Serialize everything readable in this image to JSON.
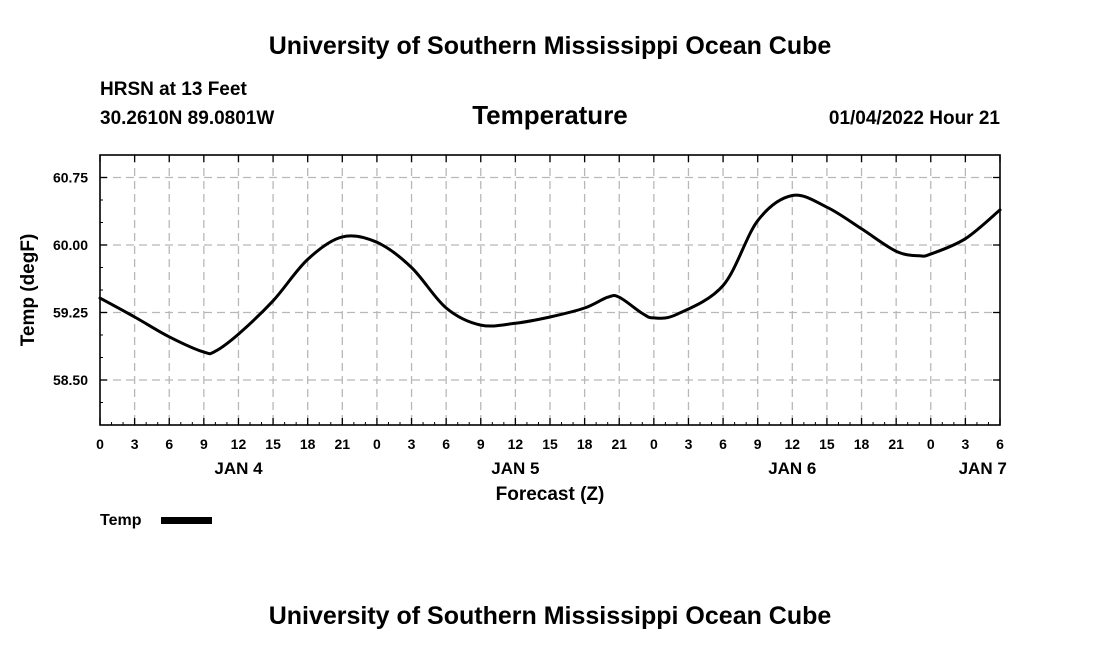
{
  "header": {
    "title": "University of Southern Mississippi Ocean Cube",
    "station": "HRSN at 13 Feet",
    "coords": "30.2610N  89.0801W",
    "variable": "Temperature",
    "issued": "01/04/2022 Hour 21"
  },
  "footer": {
    "title": "University of Southern Mississippi Ocean Cube"
  },
  "chart_data": {
    "type": "line",
    "title": "Temperature",
    "xlabel": "Forecast (Z)",
    "ylabel": "Temp (degF)",
    "xlim": [
      0,
      78
    ],
    "ylim": [
      58.0,
      61.0
    ],
    "yticks": [
      58.5,
      59.25,
      60.0,
      60.75
    ],
    "ytick_labels": [
      "58.50",
      "59.25",
      "60.00",
      "60.75"
    ],
    "xtick_labels": [
      "0",
      "3",
      "6",
      "9",
      "12",
      "15",
      "18",
      "21",
      "0",
      "3",
      "6",
      "9",
      "12",
      "15",
      "18",
      "21",
      "0",
      "3",
      "6",
      "9",
      "12",
      "15",
      "18",
      "21",
      "0",
      "3",
      "6"
    ],
    "day_labels": [
      {
        "label": "JAN 4",
        "hour": 12
      },
      {
        "label": "JAN 5",
        "hour": 36
      },
      {
        "label": "JAN 6",
        "hour": 60
      },
      {
        "label": "JAN 7",
        "hour": 76.5
      }
    ],
    "grid": true,
    "legend": "bottom-left",
    "series": [
      {
        "name": "Temp",
        "color": "#000000",
        "x": [
          0,
          3,
          6,
          9,
          10,
          12,
          15,
          18,
          21,
          24,
          27,
          30,
          33,
          36,
          39,
          42,
          44,
          45,
          47,
          48,
          50,
          54,
          57,
          60,
          63,
          66,
          69,
          71,
          72,
          75,
          78
        ],
        "y": [
          59.41,
          59.2,
          58.98,
          58.81,
          58.82,
          59.01,
          59.38,
          59.84,
          60.09,
          60.03,
          59.75,
          59.3,
          59.11,
          59.13,
          59.2,
          59.3,
          59.42,
          59.42,
          59.24,
          59.19,
          59.23,
          59.55,
          60.27,
          60.55,
          60.42,
          60.18,
          59.93,
          59.88,
          59.9,
          60.07,
          60.39
        ]
      }
    ]
  }
}
